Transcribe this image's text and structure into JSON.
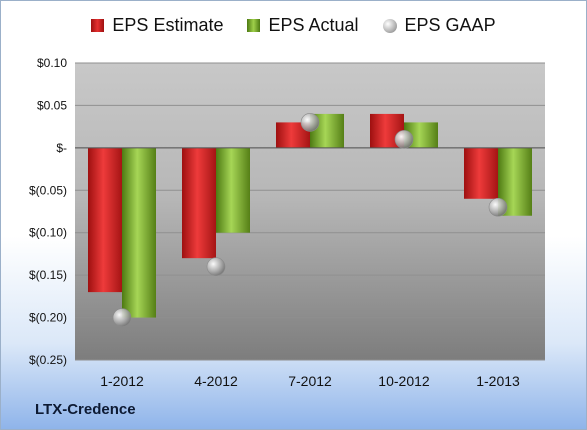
{
  "legend": {
    "estimate": "EPS Estimate",
    "actual": "EPS Actual",
    "gaap": "EPS GAAP"
  },
  "company": "LTX-Credence",
  "colors": {
    "estimate": "#d42424",
    "actual": "#8cc63f",
    "gaap": "#b8b8b8"
  },
  "chart_data": {
    "type": "bar",
    "title": "",
    "xlabel": "",
    "ylabel": "",
    "ylim": [
      -0.25,
      0.1
    ],
    "yticks": [
      0.1,
      0.05,
      0,
      -0.05,
      -0.1,
      -0.15,
      -0.2,
      -0.25
    ],
    "ytick_labels": [
      "$0.10",
      "$0.05",
      "$-",
      "$(0.05)",
      "$(0.10)",
      "$(0.15)",
      "$(0.20)",
      "$(0.25)"
    ],
    "categories": [
      "1-2012",
      "4-2012",
      "7-2012",
      "10-2012",
      "1-2013"
    ],
    "series": [
      {
        "name": "EPS Estimate",
        "values": [
          -0.17,
          -0.13,
          0.03,
          0.04,
          -0.06
        ]
      },
      {
        "name": "EPS Actual",
        "values": [
          -0.2,
          -0.1,
          0.04,
          0.03,
          -0.08
        ]
      },
      {
        "name": "EPS GAAP",
        "values": [
          -0.2,
          -0.14,
          0.03,
          0.01,
          -0.07
        ]
      }
    ],
    "legend_position": "top",
    "grid": true
  }
}
